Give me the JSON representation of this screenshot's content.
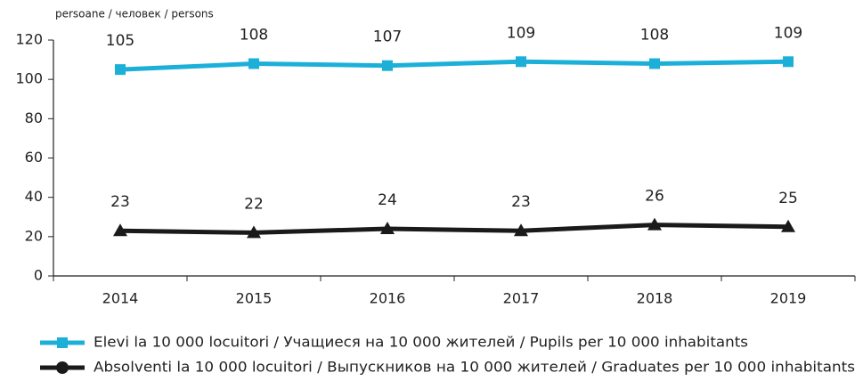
{
  "chart_data": {
    "type": "line",
    "y_label": "persoane / человек / persons",
    "categories": [
      "2014",
      "2015",
      "2016",
      "2017",
      "2018",
      "2019"
    ],
    "series": [
      {
        "name": "Elevi la 10 000 locuitori / Учащиеся на 10 000 жителей / Pupils per 10 000 inhabitants",
        "color": "#1cb0d9",
        "marker": "square",
        "values": [
          105,
          108,
          107,
          109,
          108,
          109
        ]
      },
      {
        "name": "Absolventi la 10 000 locuitori / Выпускников на 10 000 жителей / Graduates per 10 000 inhabitants",
        "color": "#1a1a1a",
        "marker": "triangle",
        "values": [
          23,
          22,
          24,
          23,
          26,
          25
        ]
      }
    ],
    "ylim": [
      0,
      120
    ],
    "yticks": [
      0,
      20,
      40,
      60,
      80,
      100,
      120
    ],
    "grid": false
  }
}
